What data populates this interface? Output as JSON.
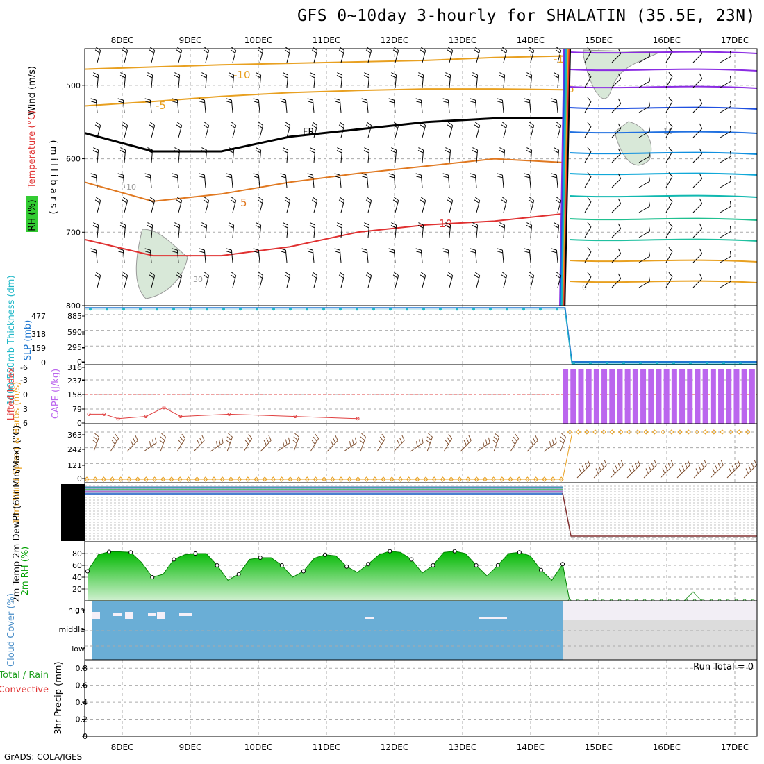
{
  "title": "GFS 0~10day 3-hourly for SHALATIN (35.5E, 23N)",
  "footer": "GrADS: COLA/IGES",
  "date_labels": [
    "8DEC",
    "9DEC",
    "10DEC",
    "11DEC",
    "12DEC",
    "13DEC",
    "14DEC",
    "15DEC",
    "16DEC",
    "17DEC"
  ],
  "colors": {
    "wind_barb": "#000000",
    "temperature_cold": "#e8a020",
    "temperature_warm": "#e03030",
    "freezing": "#000000",
    "rh_fill": "#d8e8d8",
    "slp": "#1f77d0",
    "thickness": "#20b8c8",
    "cape": "#bb66ee",
    "lifted_index": "#e04040",
    "wind10m": "#e8a020",
    "barb10m": "#805030",
    "rh2m_dark": "#00b800",
    "rh2m_light": "#d0f0d0",
    "cloud": "#6aaed6",
    "cloud_after": "#dcdcdc",
    "high_after": "#f2eef5"
  },
  "chart_data": [
    {
      "panel": "upper-air",
      "type": "line",
      "ylabel_wind": "Wind (m/s)",
      "ylabel_temp": "Temperature (°C)",
      "ylabel_rh": "RH (%)",
      "ylabel_units": "( m i l l i b a r s )",
      "y_ticks": [
        "500",
        "600",
        "700",
        "800"
      ],
      "ylim": [
        450,
        800
      ],
      "contour_labels": [
        "-10",
        "-5",
        "FR",
        "5",
        "10",
        "-10",
        "-5",
        "10",
        "30",
        "10",
        "0"
      ],
      "series": [
        {
          "name": "-10",
          "values": [
            478,
            475,
            472,
            470,
            468,
            466,
            462,
            460
          ]
        },
        {
          "name": "-5",
          "values": [
            528,
            522,
            515,
            510,
            507,
            505,
            505,
            506
          ]
        },
        {
          "name": "FR",
          "values": [
            565,
            590,
            590,
            570,
            560,
            550,
            545,
            545
          ]
        },
        {
          "name": "5",
          "values": [
            632,
            658,
            648,
            632,
            620,
            610,
            600,
            605
          ]
        },
        {
          "name": "10",
          "values": [
            710,
            732,
            732,
            720,
            700,
            690,
            685,
            675
          ]
        }
      ]
    },
    {
      "panel": "slp-thickness",
      "type": "line",
      "ylabel_thickness": "1000-500mb Thickness (dm)",
      "ylabel_slp": "SLP (mb)",
      "y_ticks_thickness": [
        "477",
        "318",
        "159",
        "0"
      ],
      "y_ticks_slp": [
        "885",
        "590",
        "295",
        "0"
      ],
      "ylim_slp": [
        0,
        1000
      ],
      "series": [
        {
          "name": "SLP",
          "x_days": [
            0,
            7.0,
            7.1,
            9.8
          ],
          "values": [
            1010,
            1010,
            0,
            0
          ]
        }
      ]
    },
    {
      "panel": "cape-lifted-index",
      "type": "bar",
      "ylabel_li": "Lifted Index",
      "ylabel_cape": "CAPE (J/kg)",
      "y_ticks_li": [
        "-6",
        "-3",
        "0",
        "3",
        "6"
      ],
      "y_ticks_cape": [
        "316",
        "237",
        "158",
        "79",
        "0"
      ],
      "ylim_cape": [
        0,
        316
      ],
      "cape_after_break": 290,
      "lifted_index": [
        4.5,
        4.5,
        5.5,
        5.0,
        3.0,
        5.0,
        4.5,
        5.0,
        5.5
      ]
    },
    {
      "panel": "wind10m",
      "type": "line",
      "ylabel": "10m Wind Speed & Barbs (m/s)",
      "y_ticks": [
        "363",
        "242",
        "121",
        "0"
      ],
      "ylim": [
        0,
        400
      ],
      "after_break_value": 363
    },
    {
      "panel": "temp2m",
      "type": "line",
      "ylabel": "2m Temp 2m DewPt (6hr Min/Max) (°C)"
    },
    {
      "panel": "rh2m",
      "type": "area",
      "ylabel": "2m RH (%)",
      "y_ticks": [
        "80",
        "60",
        "40",
        "20"
      ],
      "ylim": [
        0,
        100
      ],
      "values": [
        50,
        78,
        83,
        83,
        82,
        65,
        40,
        45,
        70,
        78,
        80,
        80,
        60,
        35,
        45,
        70,
        73,
        73,
        60,
        40,
        50,
        72,
        78,
        76,
        58,
        48,
        62,
        78,
        84,
        82,
        70,
        47,
        60,
        82,
        84,
        80,
        60,
        42,
        60,
        80,
        82,
        76,
        52,
        35,
        62
      ]
    },
    {
      "panel": "cloud-cover",
      "type": "heatmap",
      "ylabel": "Cloud Cover (%)",
      "row_labels": [
        "high",
        "middle",
        "low"
      ]
    },
    {
      "panel": "precip",
      "type": "bar",
      "ylabel": "3hr Precip (mm)",
      "ylabel_total": "Total / Rain",
      "ylabel_conv": "Convective",
      "y_ticks": [
        "0.8",
        "0.6",
        "0.4",
        "0.2",
        "0"
      ],
      "ylim": [
        0,
        0.9
      ],
      "run_total": "Run Total = 0",
      "values": []
    }
  ]
}
